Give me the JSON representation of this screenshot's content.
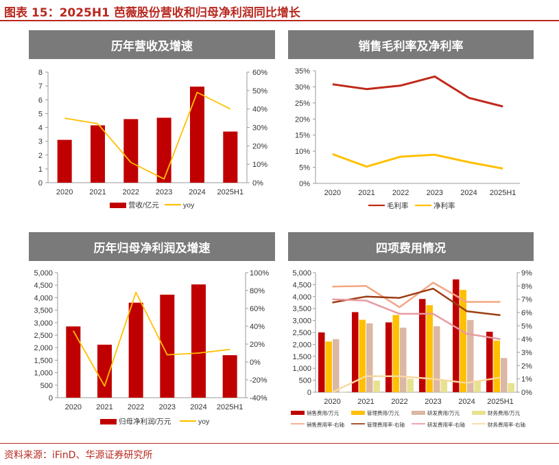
{
  "figure": {
    "title": "图表 15：2025H1 芭薇股份营收和归母净利润同比增长",
    "source": "资料来源：iFinD、华源证券研究所"
  },
  "panels": {
    "p1": "历年营收及增速",
    "p2": "销售毛利率及净利率",
    "p3": "历年归母净利润及增速",
    "p4": "四项费用情况"
  },
  "colors": {
    "bar_red": "#c00000",
    "line_yellow": "#ffc000",
    "head_gray": "#7a7a7a",
    "brand_red": "#b8281f"
  },
  "chart_data": [
    {
      "id": "revenue",
      "type": "bar",
      "title": "历年营收及增速",
      "categories": [
        "2020",
        "2021",
        "2022",
        "2023",
        "2024",
        "2025H1"
      ],
      "series": [
        {
          "name": "营收/亿元",
          "type": "bar",
          "axis": "left",
          "color": "#c00000",
          "values": [
            3.1,
            4.15,
            4.6,
            4.7,
            6.95,
            3.7
          ]
        },
        {
          "name": "yoy",
          "type": "line",
          "axis": "right",
          "color": "#ffc000",
          "values": [
            35,
            32,
            11,
            2,
            49,
            40
          ]
        }
      ],
      "y_left": {
        "min": 0,
        "max": 8,
        "step": 1,
        "ticks": [
          "0",
          "1",
          "2",
          "3",
          "4",
          "5",
          "6",
          "7",
          "8"
        ]
      },
      "y_right": {
        "min": 0,
        "max": 60,
        "step": 10,
        "ticks": [
          "0%",
          "10%",
          "20%",
          "30%",
          "40%",
          "50%",
          "60%"
        ]
      },
      "legend": "bottom"
    },
    {
      "id": "margin",
      "type": "line",
      "title": "销售毛利率及净利率",
      "categories": [
        "2020",
        "2021",
        "2022",
        "2023",
        "2024",
        "2025H1"
      ],
      "series": [
        {
          "name": "毛利率",
          "color": "#c0281a",
          "values": [
            30.8,
            29.3,
            30.4,
            33.2,
            26.6,
            23.9
          ]
        },
        {
          "name": "净利率",
          "color": "#ffc000",
          "values": [
            9.1,
            5.2,
            8.3,
            8.9,
            6.6,
            4.6
          ]
        }
      ],
      "y_left": {
        "min": 0,
        "max": 35,
        "step": 5,
        "ticks": [
          "0%",
          "5%",
          "10%",
          "15%",
          "20%",
          "25%",
          "30%",
          "35%"
        ]
      },
      "legend": "bottom"
    },
    {
      "id": "profit",
      "type": "bar",
      "title": "历年归母净利润及增速",
      "categories": [
        "2020",
        "2021",
        "2022",
        "2023",
        "2024",
        "2025H1"
      ],
      "series": [
        {
          "name": "归母净利润/万元",
          "type": "bar",
          "axis": "left",
          "color": "#c00000",
          "values": [
            2850,
            2120,
            3800,
            4120,
            4530,
            1700
          ]
        },
        {
          "name": "yoy",
          "type": "line",
          "axis": "right",
          "color": "#ffc000",
          "values": [
            35,
            -27,
            78,
            8,
            10,
            14
          ]
        }
      ],
      "y_left": {
        "min": 0,
        "max": 5000,
        "step": 500,
        "ticks": [
          "0",
          "500",
          "1,000",
          "1,500",
          "2,000",
          "2,500",
          "3,000",
          "3,500",
          "4,000",
          "4,500",
          "5,000"
        ]
      },
      "y_right": {
        "min": -40,
        "max": 100,
        "step": 20,
        "ticks": [
          "-40%",
          "-20%",
          "0%",
          "20%",
          "40%",
          "60%",
          "80%",
          "100%"
        ]
      },
      "legend": "bottom"
    },
    {
      "id": "expenses",
      "type": "bar",
      "title": "四项费用情况",
      "categories": [
        "2020",
        "2021",
        "2022",
        "2023",
        "2024",
        "2025H1"
      ],
      "series": [
        {
          "name": "销售费用/万元",
          "type": "bar",
          "axis": "left",
          "color": "#c00000",
          "values": [
            2500,
            3350,
            2920,
            3900,
            4720,
            2530
          ]
        },
        {
          "name": "管理费用/万元",
          "type": "bar",
          "axis": "left",
          "color": "#ffc000",
          "values": [
            2120,
            3030,
            3230,
            3640,
            4280,
            2160
          ]
        },
        {
          "name": "研发费用/万元",
          "type": "bar",
          "axis": "left",
          "color": "#dbb7a4",
          "values": [
            2220,
            2880,
            2700,
            2760,
            3020,
            1430
          ]
        },
        {
          "name": "财务费用/万元",
          "type": "bar",
          "axis": "left",
          "color": "#e6e28f",
          "values": [
            10,
            490,
            560,
            520,
            490,
            380
          ]
        },
        {
          "name": "销售费用率-右轴",
          "type": "line",
          "axis": "right",
          "color": "#f4a582",
          "values": [
            7.95,
            8.0,
            6.4,
            8.25,
            6.8,
            6.8
          ]
        },
        {
          "name": "管理费用率-右轴",
          "type": "line",
          "axis": "right",
          "color": "#9c3d12",
          "values": [
            6.75,
            7.2,
            7.1,
            7.8,
            6.1,
            5.8
          ]
        },
        {
          "name": "研发费用率-右轴",
          "type": "line",
          "axis": "right",
          "color": "#e89aa0",
          "values": [
            7.0,
            6.9,
            5.9,
            5.9,
            4.4,
            4.0
          ]
        },
        {
          "name": "财务费用率-右轴",
          "type": "line",
          "axis": "right",
          "color": "#f7d9a0",
          "values": [
            0.0,
            1.2,
            1.2,
            1.0,
            0.7,
            1.1
          ]
        }
      ],
      "y_left": {
        "min": 0,
        "max": 5000,
        "step": 500,
        "ticks": [
          "0",
          "500",
          "1,000",
          "1,500",
          "2,000",
          "2,500",
          "3,000",
          "3,500",
          "4,000",
          "4,500",
          "5,000"
        ]
      },
      "y_right": {
        "min": 0,
        "max": 9,
        "step": 1,
        "ticks": [
          "0%",
          "1%",
          "2%",
          "3%",
          "4%",
          "5%",
          "6%",
          "7%",
          "8%",
          "9%"
        ]
      },
      "legend": "bottom"
    }
  ]
}
